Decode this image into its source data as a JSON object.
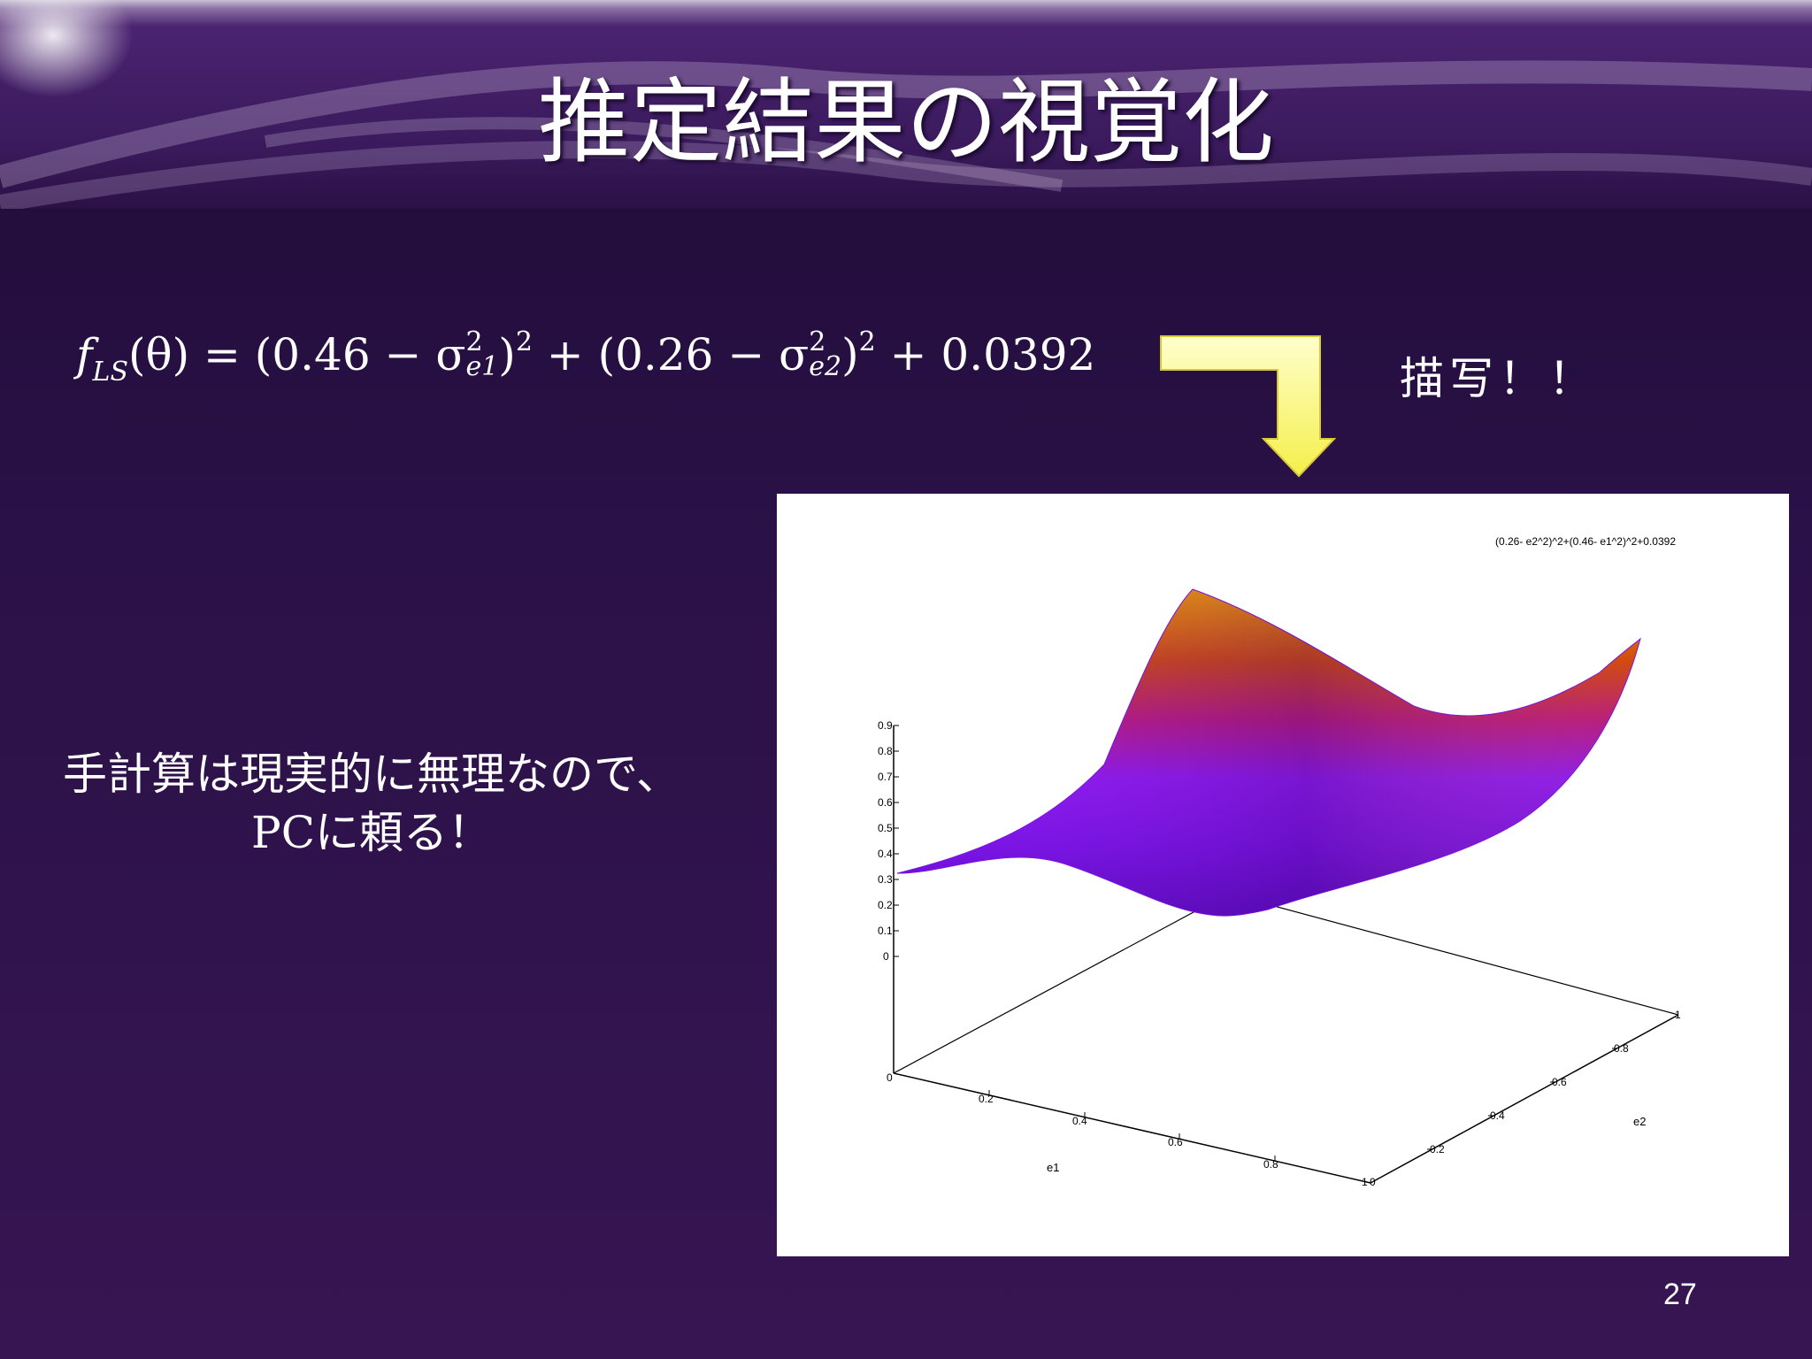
{
  "slide": {
    "title": "推定結果の視覚化",
    "formula": {
      "lhs": "f",
      "lhs_sub": "LS",
      "arg": "(θ) = (0.46 − σ",
      "t1_sup": "2",
      "t1_sub": "e1",
      "mid": ")",
      "pow1": "2",
      "mid2": " + (0.26 − σ",
      "t2_sup": "2",
      "t2_sub": "e2",
      "end": ")",
      "pow2": "2",
      "tail": " + 0.0392"
    },
    "draw_label": "描写！！",
    "note_line1": "手計算は現実的に無理なので、",
    "note_line2": "PCに頼る！",
    "page_number": "27"
  },
  "plot": {
    "legend": "(0.26- e2^2)^2+(0.46- e1^2)^2+0.0392",
    "z_ticks": [
      "0.9",
      "0.8",
      "0.7",
      "0.6",
      "0.5",
      "0.4",
      "0.3",
      "0.2",
      "0.1",
      "0"
    ],
    "e1_ticks": [
      "0",
      "0.2",
      "0.4",
      "0.6",
      "0.8",
      "1"
    ],
    "e2_ticks": [
      "0",
      "0.2",
      "0.4",
      "0.6",
      "0.8",
      "1"
    ],
    "xlabel": "e1",
    "ylabel": "e2"
  },
  "colors": {
    "low": "#8a1cff",
    "mid": "#c8287a",
    "high": "#f5a000",
    "arrow_fill": "#ffff66"
  }
}
